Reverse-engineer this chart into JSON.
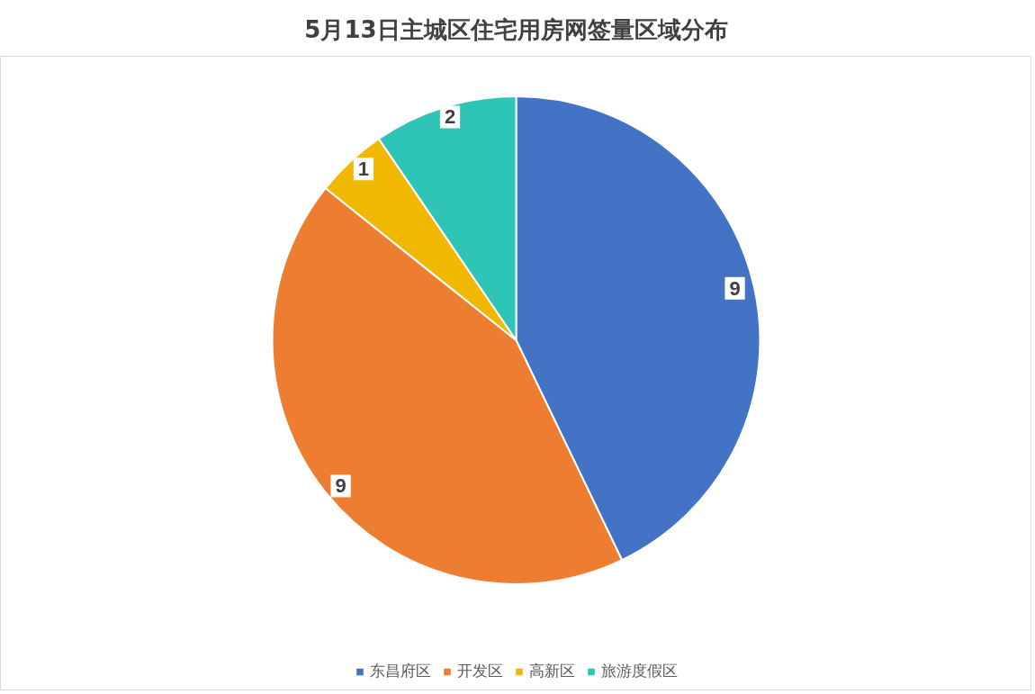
{
  "chart_data": {
    "type": "pie",
    "title": "5月13日主城区住宅用房网签量区域分布",
    "categories": [
      "东昌府区",
      "开发区",
      "高新区",
      "旅游度假区"
    ],
    "values": [
      9,
      9,
      1,
      2
    ],
    "colors": [
      "#4472c4",
      "#ed7d31",
      "#f0b800",
      "#2ec4b6"
    ],
    "data_labels": true,
    "legend": "bottom"
  }
}
